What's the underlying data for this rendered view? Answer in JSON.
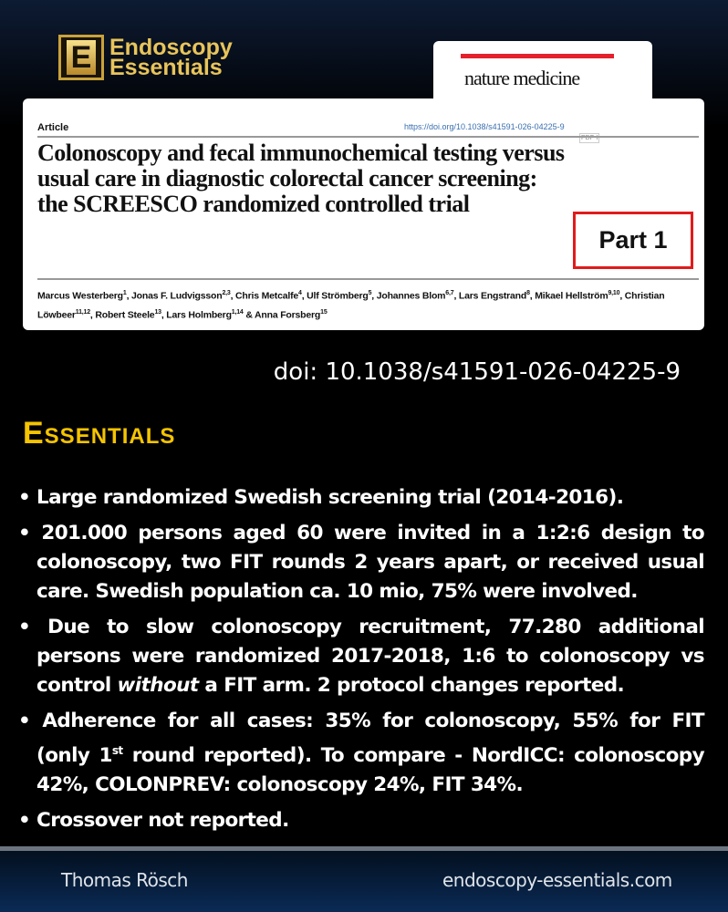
{
  "logo": {
    "letter": "E",
    "line1": "Endoscopy",
    "line2": "Essentials"
  },
  "journal": {
    "name": "nature medicine",
    "accent": "#e3202c"
  },
  "article": {
    "type": "Article",
    "url": "https://doi.org/10.1038/s41591-026-04225-9",
    "pdf": "PDF-I",
    "title": "Colonoscopy and fecal immunochemical testing versus usual care in diagnostic colorectal cancer screening: the SCREESCO randomized controlled trial",
    "part_label": "Part 1",
    "authors": [
      {
        "name": "Marcus Westerberg",
        "sup": "1"
      },
      {
        "name": ", Jonas F. Ludvigsson",
        "sup": "2,3"
      },
      {
        "name": ", Chris Metcalfe",
        "sup": "4"
      },
      {
        "name": ", Ulf Strömberg",
        "sup": "5"
      },
      {
        "name": ", Johannes Blom",
        "sup": "6,7"
      },
      {
        "name": ", Lars Engstrand",
        "sup": "8"
      },
      {
        "name": ", Mikael Hellström",
        "sup": "9,10"
      },
      {
        "name": ", Christian Löwbeer",
        "sup": "11,12"
      },
      {
        "name": ", Robert Steele",
        "sup": "13"
      },
      {
        "name": ", Lars Holmberg",
        "sup": "1,14"
      },
      {
        "name": " & Anna Forsberg",
        "sup": "15"
      }
    ]
  },
  "doi": "doi: 10.1038/s41591-026-04225-9",
  "heading": "Essentials",
  "heading_color": "#f5c400",
  "bullets": [
    {
      "text": "Large randomized Swedish screening trial (2014-2016)."
    },
    {
      "text": "201.000 persons aged 60 were invited in a 1:2:6 design to colonoscopy, two FIT rounds 2 years apart, or received usual care. Swedish population  ca. 10 mio,  75% were involved."
    },
    {
      "a": "Due to slow colonoscopy recruitment, 77.280 additional persons were randomized 2017-2018, 1:6 to colonoscopy vs control ",
      "em": "without",
      "b": " a FIT arm. 2 protocol changes reported."
    },
    {
      "a": "Adherence for all cases: 35% for colonoscopy, 55% for FIT (only 1",
      "sup": "st",
      "b": " round reported). To compare - NordICC: colonoscopy 42%, COLONPREV: colonoscopy 24%, FIT 34%."
    },
    {
      "text": "Crossover not reported."
    }
  ],
  "footer": {
    "author": "Thomas Rösch",
    "website": "endoscopy-essentials.com"
  }
}
